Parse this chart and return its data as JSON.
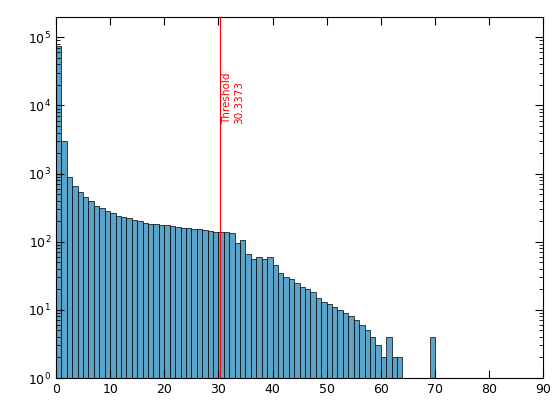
{
  "bin_counts": [
    75000,
    3000,
    900,
    650,
    530,
    450,
    390,
    340,
    310,
    280,
    260,
    240,
    230,
    220,
    210,
    200,
    190,
    185,
    180,
    175,
    175,
    170,
    165,
    160,
    160,
    155,
    155,
    150,
    145,
    140,
    140,
    140,
    135,
    95,
    105,
    65,
    55,
    60,
    55,
    60,
    45,
    35,
    30,
    28,
    25,
    22,
    20,
    18,
    15,
    13,
    12,
    11,
    10,
    9,
    8,
    7,
    6,
    5,
    4,
    3,
    2,
    4,
    2,
    2,
    1,
    0,
    0,
    0,
    0,
    4,
    0,
    0,
    0,
    0,
    0,
    0,
    0,
    0,
    0,
    0,
    0,
    0,
    0,
    0,
    0,
    0,
    0,
    0,
    0,
    0
  ],
  "bin_edges_start": 0,
  "bin_edges_stop": 90,
  "threshold": 30.3373,
  "threshold_label": "Threshold\n30.3373",
  "bar_color": "#5BA3C9",
  "bar_edge_color": "#000000",
  "line_color": "#FF0000",
  "xlim": [
    0,
    90
  ],
  "ylim_bottom": 1,
  "ylim_top": 200000,
  "xticks": [
    0,
    10,
    20,
    30,
    40,
    50,
    60,
    70,
    80,
    90
  ],
  "background_color": "#ffffff",
  "figsize": [
    5.6,
    4.2
  ],
  "dpi": 100
}
